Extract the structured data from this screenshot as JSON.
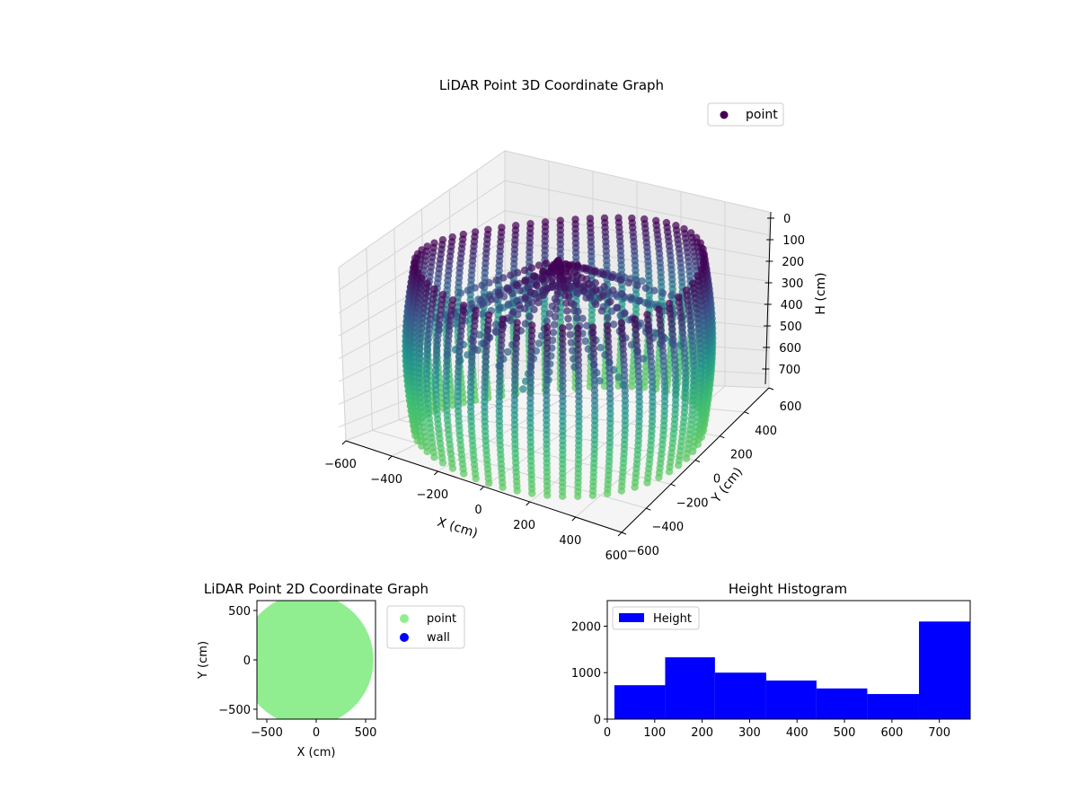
{
  "chart_data": [
    {
      "type": "scatter3d",
      "title": "LiDAR Point 3D Coordinate Graph",
      "xlabel": "X (cm)",
      "ylabel": "Y (cm)",
      "zlabel": "H (cm)",
      "xlim": [
        -600,
        600
      ],
      "ylim": [
        -600,
        600
      ],
      "zlim": [
        0,
        760
      ],
      "z_inverted": true,
      "xticks": [
        "−600",
        "−400",
        "−200",
        "0",
        "200",
        "400",
        "600"
      ],
      "yticks": [
        "−600",
        "−400",
        "−200",
        "0",
        "200",
        "400",
        "600"
      ],
      "zticks": [
        "0",
        "100",
        "200",
        "300",
        "400",
        "500",
        "600",
        "700"
      ],
      "legend": {
        "label": "point",
        "placement": "top-right"
      },
      "colormap": [
        "#440154",
        "#3b528b",
        "#21918c",
        "#3dbc74",
        "#5ec962"
      ],
      "structure": {
        "wall_radius": 560,
        "wall_columns": 60,
        "wall_height_range": [
          0,
          760
        ],
        "interior_rays": 30
      },
      "grid": true
    },
    {
      "type": "scatter",
      "title": "LiDAR Point 2D Coordinate Graph",
      "xlabel": "X (cm)",
      "ylabel": "Y (cm)",
      "xlim": [
        -600,
        600
      ],
      "ylim": [
        -600,
        600
      ],
      "xticks": [
        "−500",
        "0",
        "500"
      ],
      "yticks": [
        "−500",
        "0",
        "500"
      ],
      "series": [
        {
          "name": "point",
          "color": "#90ee90",
          "shape": "disc",
          "radius_range": [
            0,
            600
          ]
        },
        {
          "name": "wall",
          "color": "#0000ff",
          "shape": "wall",
          "radius": 560
        }
      ],
      "legend_placement": "outside-right",
      "grid": false
    },
    {
      "type": "bar",
      "title": "Height Histogram",
      "xlabel": "",
      "ylabel": "",
      "xlim": [
        0,
        765
      ],
      "ylim": [
        0,
        2550
      ],
      "xticks": [
        0,
        100,
        200,
        300,
        400,
        500,
        600,
        700
      ],
      "yticks": [
        0,
        1000,
        2000
      ],
      "bin_edges": [
        15,
        122,
        227,
        335,
        441,
        548,
        657,
        765
      ],
      "values": [
        730,
        1330,
        1000,
        830,
        660,
        540,
        2100
      ],
      "series_name": "Height",
      "color": "#0000ff",
      "legend_placement": "top-left",
      "grid": false
    }
  ]
}
